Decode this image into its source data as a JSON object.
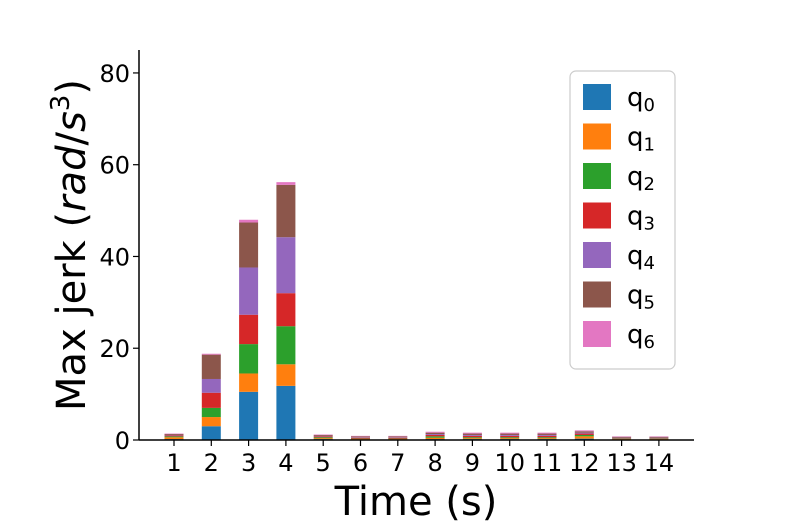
{
  "chart_data": {
    "type": "bar",
    "stacked": true,
    "categories": [
      "1",
      "2",
      "3",
      "4",
      "5",
      "6",
      "7",
      "8",
      "9",
      "10",
      "11",
      "12",
      "13",
      "14"
    ],
    "xlabel": "Time (s)",
    "ylabel": {
      "prefix": "Max jerk (",
      "unit_num": "rad",
      "slash": "/",
      "unit_den": "s",
      "exp": "3",
      "suffix": ")"
    },
    "ylim": [
      0,
      85
    ],
    "yticks": [
      0,
      20,
      40,
      60,
      80
    ],
    "grid": false,
    "legend_position": "top-right",
    "series": [
      {
        "name": "q",
        "sub": "0",
        "color": "#1f77b4",
        "values": [
          0.2,
          3.0,
          10.5,
          11.8,
          0.2,
          0.1,
          0.1,
          0.2,
          0.2,
          0.2,
          0.2,
          0.3,
          0.1,
          0.1
        ]
      },
      {
        "name": "q",
        "sub": "1",
        "color": "#ff7f0e",
        "values": [
          0.4,
          2.0,
          4.0,
          4.7,
          0.2,
          0.1,
          0.1,
          0.3,
          0.2,
          0.2,
          0.2,
          0.5,
          0.1,
          0.1
        ]
      },
      {
        "name": "q",
        "sub": "2",
        "color": "#2ca02c",
        "values": [
          0.2,
          2.0,
          6.4,
          8.3,
          0.2,
          0.1,
          0.1,
          0.3,
          0.2,
          0.2,
          0.2,
          0.3,
          0.1,
          0.1
        ]
      },
      {
        "name": "q",
        "sub": "3",
        "color": "#d62728",
        "values": [
          0.2,
          3.3,
          6.4,
          7.2,
          0.2,
          0.2,
          0.2,
          0.3,
          0.3,
          0.3,
          0.3,
          0.3,
          0.1,
          0.1
        ]
      },
      {
        "name": "q",
        "sub": "4",
        "color": "#9467bd",
        "values": [
          0.1,
          3.0,
          10.3,
          12.2,
          0.1,
          0.1,
          0.1,
          0.2,
          0.2,
          0.2,
          0.2,
          0.2,
          0.1,
          0.1
        ]
      },
      {
        "name": "q",
        "sub": "5",
        "color": "#8c564b",
        "values": [
          0.2,
          5.3,
          9.8,
          11.4,
          0.2,
          0.2,
          0.2,
          0.3,
          0.3,
          0.3,
          0.3,
          0.3,
          0.2,
          0.2
        ]
      },
      {
        "name": "q",
        "sub": "6",
        "color": "#e377c2",
        "values": [
          0.1,
          0.2,
          0.6,
          0.6,
          0.1,
          0.1,
          0.1,
          0.2,
          0.2,
          0.2,
          0.2,
          0.2,
          0.1,
          0.1
        ]
      }
    ]
  }
}
